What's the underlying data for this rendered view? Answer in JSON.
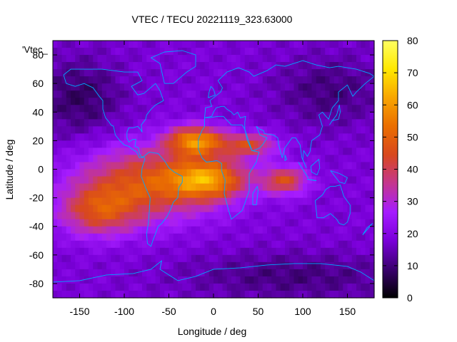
{
  "chart_data": {
    "type": "heatmap",
    "title": "VTEC / TECU 20221119_323.63000",
    "xlabel": "Longitude / deg",
    "ylabel": "Latitude / deg",
    "annotation": "'Vtec_",
    "xlim": [
      -180,
      180
    ],
    "ylim": [
      -90,
      90
    ],
    "x_ticks": [
      -150,
      -100,
      -50,
      0,
      50,
      100,
      150
    ],
    "y_ticks": [
      -80,
      -60,
      -40,
      -20,
      0,
      20,
      40,
      60,
      80
    ],
    "colorbar": {
      "range": [
        0,
        80
      ],
      "ticks": [
        0,
        10,
        20,
        30,
        40,
        50,
        60,
        70,
        80
      ],
      "colormap": [
        "#000000",
        "#3a006e",
        "#7a00d9",
        "#a51cff",
        "#c4368f",
        "#d8481e",
        "#ea6e00",
        "#f8a500",
        "#ffe800",
        "#ffff60"
      ]
    },
    "field_description": {
      "background_tecu": 18,
      "high_zones": [
        {
          "lon": -75,
          "lat": -10,
          "peak_tecu": 47,
          "sigma_lon": 55,
          "sigma_lat": 18
        },
        {
          "lon": -20,
          "lat": 20,
          "peak_tecu": 56,
          "sigma_lon": 22,
          "sigma_lat": 7
        },
        {
          "lon": -5,
          "lat": -7,
          "peak_tecu": 52,
          "sigma_lon": 30,
          "sigma_lat": 10
        },
        {
          "lon": 40,
          "lat": 17,
          "peak_tecu": 42,
          "sigma_lon": 22,
          "sigma_lat": 6
        },
        {
          "lon": 80,
          "lat": -8,
          "peak_tecu": 44,
          "sigma_lon": 18,
          "sigma_lat": 7
        },
        {
          "lon": -130,
          "lat": -30,
          "peak_tecu": 40,
          "sigma_lon": 30,
          "sigma_lat": 12
        }
      ],
      "low_zones": [
        {
          "lon": -150,
          "lat": 50,
          "drop_tecu": 10,
          "sigma_lon": 35,
          "sigma_lat": 20
        },
        {
          "lon": 130,
          "lat": 55,
          "drop_tecu": 8,
          "sigma_lon": 45,
          "sigma_lat": 18
        },
        {
          "lon": 90,
          "lat": -75,
          "drop_tecu": 8,
          "sigma_lon": 90,
          "sigma_lat": 12
        }
      ]
    },
    "overlay": "coastlines",
    "overlay_color": "#00a8ff"
  }
}
